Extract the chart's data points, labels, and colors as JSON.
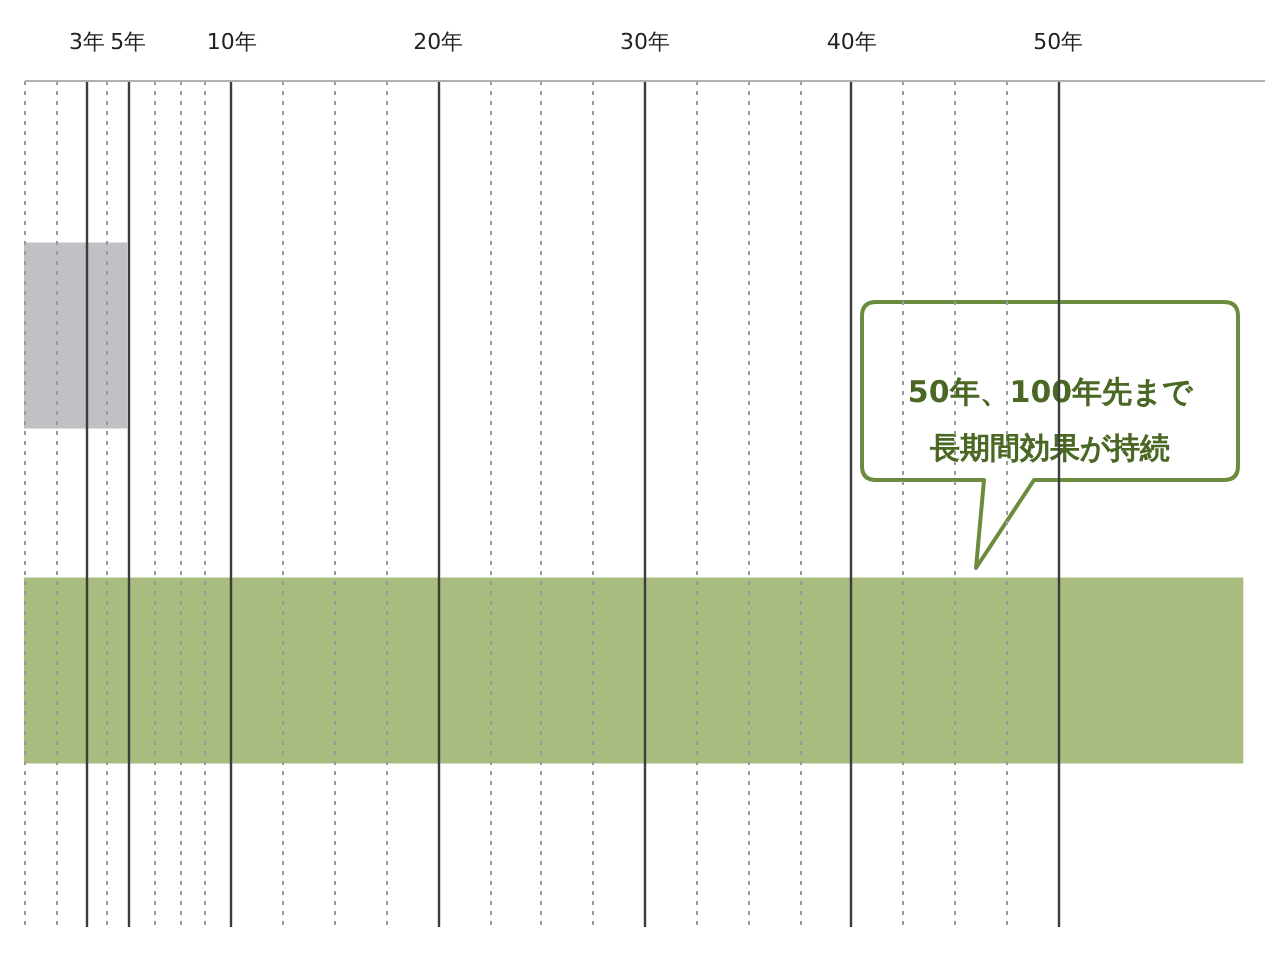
{
  "chart_data": {
    "type": "bar",
    "orientation": "horizontal",
    "categories": [
      null,
      null
    ],
    "values": [
      5,
      59
    ],
    "colors": [
      "#c1c1c5",
      "#a9bc7f"
    ],
    "xlim": [
      0,
      60
    ],
    "xticks": [
      {
        "value": 0,
        "label": null
      },
      {
        "value": 1.5,
        "label": null
      },
      {
        "value": 3,
        "label": "3年"
      },
      {
        "value": 4,
        "label": null
      },
      {
        "value": 5,
        "label": "5年"
      },
      {
        "value": 6.25,
        "label": null
      },
      {
        "value": 7.5,
        "label": null
      },
      {
        "value": 8.75,
        "label": null
      },
      {
        "value": 10,
        "label": "10年"
      },
      {
        "value": 12.5,
        "label": null
      },
      {
        "value": 15,
        "label": null
      },
      {
        "value": 17.5,
        "label": null
      },
      {
        "value": 20,
        "label": "20年"
      },
      {
        "value": 22.5,
        "label": null
      },
      {
        "value": 25,
        "label": null
      },
      {
        "value": 27.5,
        "label": null
      },
      {
        "value": 30,
        "label": "30年"
      },
      {
        "value": 32.5,
        "label": null
      },
      {
        "value": 35,
        "label": null
      },
      {
        "value": 37.5,
        "label": null
      },
      {
        "value": 40,
        "label": "40年"
      },
      {
        "value": 42.5,
        "label": null
      },
      {
        "value": 45,
        "label": null
      },
      {
        "value": 47.5,
        "label": null
      },
      {
        "value": 50,
        "label": "50年"
      }
    ],
    "grid": "x",
    "tick_labels": "x",
    "annotations": [
      "50年、100年先まで長期間効果が持続"
    ]
  }
}
